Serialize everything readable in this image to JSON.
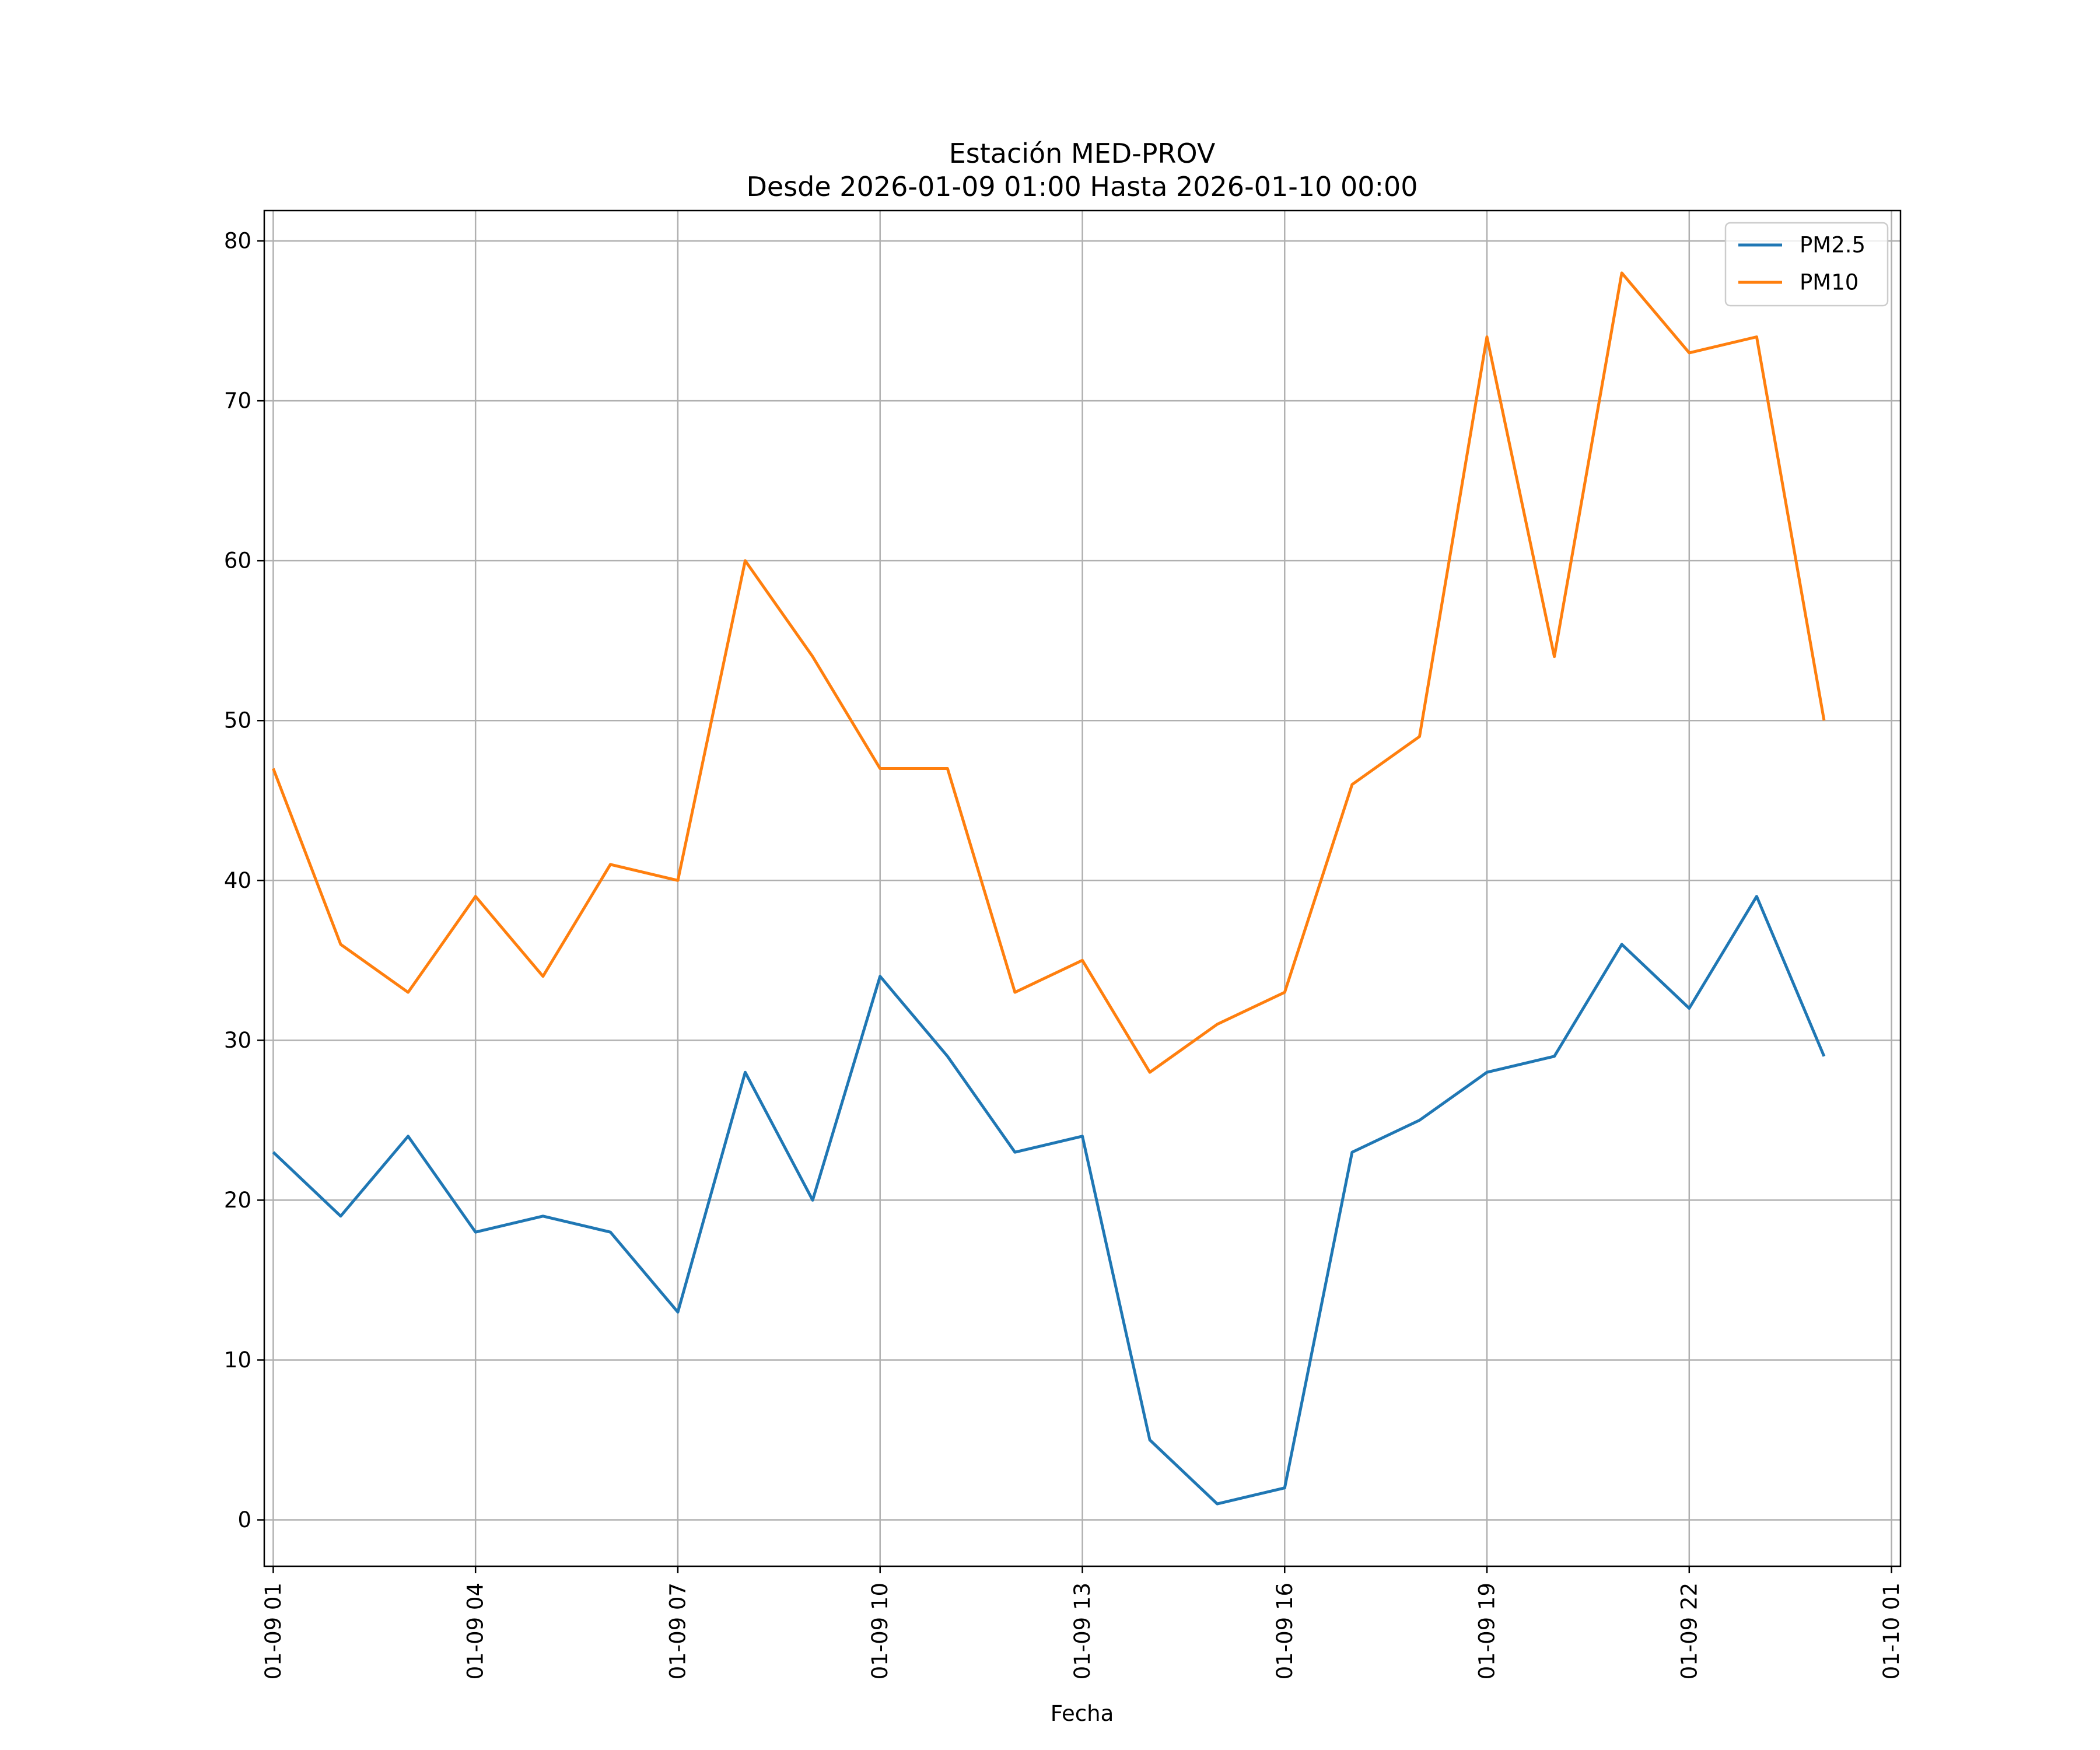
{
  "chart_data": {
    "type": "line",
    "title": "Estación MED-PROV",
    "subtitle": "Desde 2026-01-09 01:00 Hasta 2026-01-10 00:00",
    "xlabel": "Fecha",
    "ylabel": "",
    "x": [
      "01-09 01",
      "01-09 02",
      "01-09 03",
      "01-09 04",
      "01-09 05",
      "01-09 06",
      "01-09 07",
      "01-09 08",
      "01-09 09",
      "01-09 10",
      "01-09 11",
      "01-09 12",
      "01-09 13",
      "01-09 14",
      "01-09 15",
      "01-09 16",
      "01-09 17",
      "01-09 18",
      "01-09 19",
      "01-09 20",
      "01-09 21",
      "01-09 22",
      "01-09 23",
      "01-10 00"
    ],
    "x_ticks": [
      "01-09 01",
      "01-09 04",
      "01-09 07",
      "01-09 10",
      "01-09 13",
      "01-09 16",
      "01-09 19",
      "01-09 22",
      "01-10 01"
    ],
    "xlim": [
      "01-09 00:52",
      "01-10 01:08"
    ],
    "y_ticks": [
      0,
      10,
      20,
      30,
      40,
      50,
      60,
      70,
      80
    ],
    "ylim": [
      -2.9,
      81.9
    ],
    "grid": true,
    "legend_position": "top-right",
    "series": [
      {
        "name": "PM2.5",
        "color": "#1f77b4",
        "values": [
          23,
          19,
          24,
          18,
          19,
          18,
          13,
          28,
          20,
          34,
          29,
          23,
          24,
          5,
          1,
          2,
          23,
          25,
          28,
          29,
          36,
          32,
          39,
          29
        ]
      },
      {
        "name": "PM10",
        "color": "#ff7f0e",
        "values": [
          47,
          36,
          33,
          39,
          34,
          41,
          40,
          60,
          54,
          47,
          47,
          33,
          35,
          28,
          31,
          33,
          46,
          49,
          74,
          54,
          78,
          73,
          74,
          50
        ]
      }
    ]
  }
}
